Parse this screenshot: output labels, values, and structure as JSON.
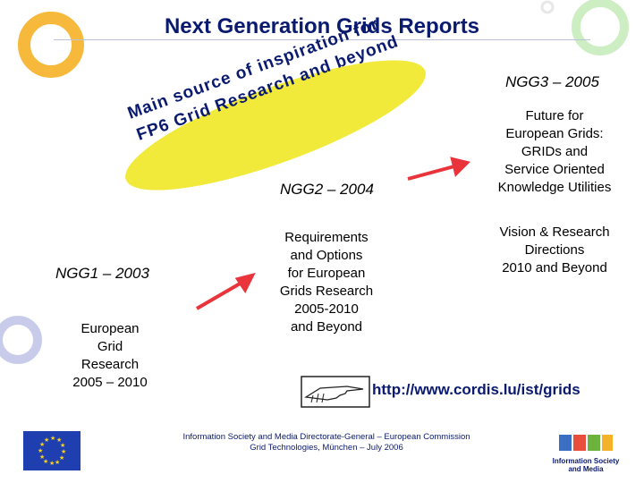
{
  "title": "Next Generation Grids Reports",
  "slogan": {
    "line1": "Main source of inspiration for",
    "line2": "FP6 Grid Research and beyond"
  },
  "ngg1": {
    "heading": "NGG1 – 2003",
    "lines": [
      "European",
      "Grid",
      "Research",
      "2005 – 2010"
    ]
  },
  "ngg2": {
    "heading": "NGG2 – 2004",
    "lines": [
      "Requirements",
      "and Options",
      "for European",
      "Grids Research",
      "2005-2010",
      "and Beyond"
    ]
  },
  "ngg3": {
    "heading": "NGG3 – 2005",
    "lines": [
      "Future for",
      "European Grids:",
      "GRIDs and",
      "Service Oriented",
      "Knowledge Utilities"
    ],
    "vision_lines": [
      "Vision & Research",
      "Directions",
      "2010 and Beyond"
    ]
  },
  "link": "http://www.cordis.lu/ist/grids",
  "footer": {
    "line1": "Information Society and Media Directorate-General – European Commission",
    "line2": "Grid Technologies, München – July 2006"
  },
  "logo_text": {
    "line1": "Information Society",
    "line2": "and Media"
  },
  "colors": {
    "title": "#0a1a6e",
    "ellipse": "#f2ea3a",
    "circle_orange": "#f6b93b",
    "circle_green": "#cdeec3",
    "circle_lilac": "#c9cbea",
    "arrow": "#e8343a",
    "eu_flag": "#1f3fb0"
  }
}
